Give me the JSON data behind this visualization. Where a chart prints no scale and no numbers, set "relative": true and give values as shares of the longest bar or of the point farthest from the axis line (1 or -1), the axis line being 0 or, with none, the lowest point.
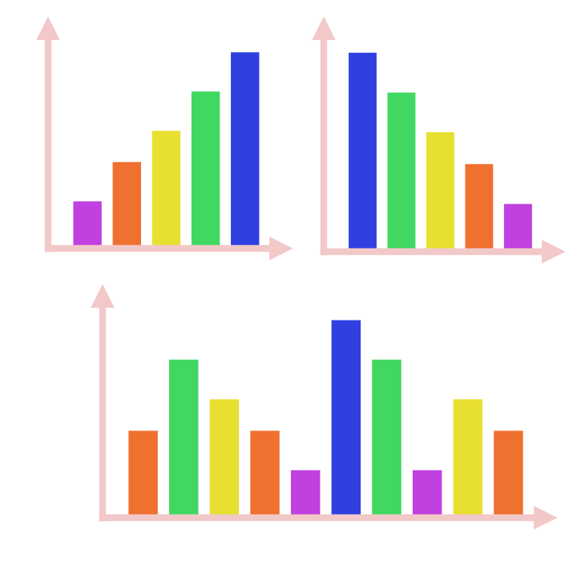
{
  "chart_data": [
    {
      "type": "bar",
      "relative": true,
      "categories": [
        null,
        null,
        null,
        null,
        null
      ],
      "values": [
        0.24,
        0.44,
        0.6,
        0.8,
        1
      ],
      "colors": [
        "#c040e0",
        "#f07030",
        "#e8e030",
        "#40d860",
        "#3040e0"
      ]
    },
    {
      "type": "bar",
      "relative": true,
      "categories": [
        null,
        null,
        null,
        null,
        null
      ],
      "values": [
        1,
        0.8,
        0.6,
        0.44,
        0.24
      ],
      "colors": [
        "#3040e0",
        "#40d860",
        "#e8e030",
        "#f07030",
        "#c040e0"
      ]
    },
    {
      "type": "bar",
      "relative": true,
      "categories": [
        null,
        null,
        null,
        null,
        null,
        null,
        null,
        null,
        null,
        null
      ],
      "values": [
        0.44,
        0.8,
        0.6,
        0.44,
        0.24,
        1,
        0.8,
        0.24,
        0.6,
        0.44
      ],
      "colors": [
        "#f07030",
        "#40d860",
        "#e8e030",
        "#f07030",
        "#c040e0",
        "#3040e0",
        "#40d860",
        "#c040e0",
        "#e8e030",
        "#f07030"
      ]
    }
  ]
}
